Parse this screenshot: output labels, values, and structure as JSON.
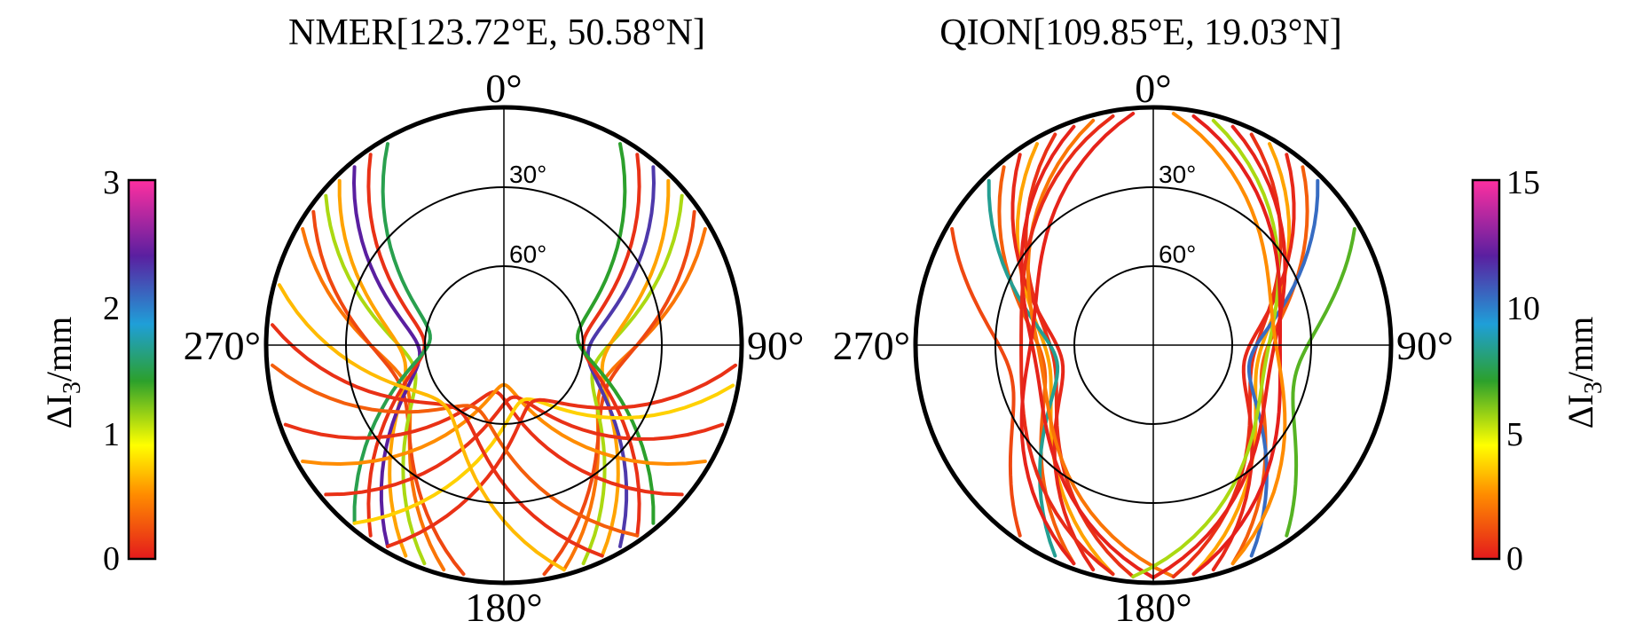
{
  "chart_data": [
    {
      "type": "polar-skyplot",
      "title": "NMER[123.72°E, 50.58°N]",
      "direction_labels": [
        "0°",
        "90°",
        "180°",
        "270°"
      ],
      "ring_labels": [
        "30°",
        "60°"
      ],
      "colorbar": {
        "label": "ΔI3/mm",
        "label_main": "ΔI",
        "label_sub": "3",
        "label_unit": "/mm",
        "range": [
          0,
          3
        ],
        "ticks": [
          "0",
          "1",
          "2",
          "3"
        ],
        "colormap": [
          "#e41a1c",
          "#ff8c00",
          "#ffff00",
          "#2ca02c",
          "#1f9fd8",
          "#5a1fa0",
          "#ff2fa0"
        ]
      },
      "tracks": [
        {
          "az_from": 300,
          "az_to": 195,
          "el_peak": 50,
          "level": 0.4
        },
        {
          "az_from": 305,
          "az_to": 190,
          "el_peak": 48,
          "level": 0.2
        },
        {
          "az_from": 310,
          "az_to": 200,
          "el_peak": 55,
          "level": 1.2
        },
        {
          "az_from": 315,
          "az_to": 205,
          "el_peak": 52,
          "level": 0.6
        },
        {
          "az_from": 320,
          "az_to": 210,
          "el_peak": 58,
          "level": 2.5
        },
        {
          "az_from": 325,
          "az_to": 215,
          "el_peak": 60,
          "level": 0.1
        },
        {
          "az_from": 330,
          "az_to": 220,
          "el_peak": 62,
          "level": 1.6
        },
        {
          "az_from": 60,
          "az_to": 165,
          "el_peak": 50,
          "level": 0.4
        },
        {
          "az_from": 55,
          "az_to": 170,
          "el_peak": 48,
          "level": 0.2
        },
        {
          "az_from": 50,
          "az_to": 160,
          "el_peak": 55,
          "level": 1.2
        },
        {
          "az_from": 45,
          "az_to": 155,
          "el_peak": 52,
          "level": 0.6
        },
        {
          "az_from": 40,
          "az_to": 150,
          "el_peak": 58,
          "level": 2.4
        },
        {
          "az_from": 35,
          "az_to": 145,
          "el_peak": 60,
          "level": 0.1
        },
        {
          "az_from": 30,
          "az_to": 140,
          "el_peak": 62,
          "level": 1.5
        },
        {
          "az_from": 250,
          "az_to": 130,
          "el_peak": 72,
          "level": 0.1
        },
        {
          "az_from": 240,
          "az_to": 120,
          "el_peak": 75,
          "level": 0.5
        },
        {
          "az_from": 230,
          "az_to": 110,
          "el_peak": 70,
          "level": 0.1
        },
        {
          "az_from": 220,
          "az_to": 100,
          "el_peak": 68,
          "level": 0.8
        },
        {
          "az_from": 210,
          "az_to": 95,
          "el_peak": 66,
          "level": 0.1
        },
        {
          "az_from": 265,
          "az_to": 145,
          "el_peak": 64,
          "level": 0.3
        },
        {
          "az_from": 275,
          "az_to": 155,
          "el_peak": 60,
          "level": 0.1
        },
        {
          "az_from": 285,
          "az_to": 165,
          "el_peak": 58,
          "level": 0.7
        }
      ]
    },
    {
      "type": "polar-skyplot",
      "title": "QION[109.85°E, 19.03°N]",
      "direction_labels": [
        "0°",
        "90°",
        "180°",
        "270°"
      ],
      "ring_labels": [
        "30°",
        "60°"
      ],
      "colorbar": {
        "label": "ΔI3/mm",
        "label_main": "ΔI",
        "label_sub": "3",
        "label_unit": "/mm",
        "range": [
          0,
          15
        ],
        "ticks": [
          "0",
          "5",
          "10",
          "15"
        ],
        "colormap": [
          "#e41a1c",
          "#ff8c00",
          "#ffff00",
          "#2ca02c",
          "#1f9fd8",
          "#5a1fa0",
          "#ff2fa0"
        ]
      },
      "tracks": [
        {
          "az_from": 335,
          "az_to": 185,
          "el_peak": 52,
          "level": 0.5
        },
        {
          "az_from": 330,
          "az_to": 190,
          "el_peak": 50,
          "level": 3.0
        },
        {
          "az_from": 325,
          "az_to": 195,
          "el_peak": 55,
          "level": 0.3
        },
        {
          "az_from": 320,
          "az_to": 200,
          "el_peak": 48,
          "level": 1.5
        },
        {
          "az_from": 315,
          "az_to": 205,
          "el_peak": 53,
          "level": 9.0
        },
        {
          "az_from": 340,
          "az_to": 180,
          "el_peak": 45,
          "level": 0.2
        },
        {
          "az_from": 345,
          "az_to": 175,
          "el_peak": 47,
          "level": 2.0
        },
        {
          "az_from": 25,
          "az_to": 175,
          "el_peak": 52,
          "level": 0.5
        },
        {
          "az_from": 30,
          "az_to": 170,
          "el_peak": 50,
          "level": 3.0
        },
        {
          "az_from": 35,
          "az_to": 165,
          "el_peak": 55,
          "level": 0.3
        },
        {
          "az_from": 40,
          "az_to": 160,
          "el_peak": 48,
          "level": 1.5
        },
        {
          "az_from": 45,
          "az_to": 155,
          "el_peak": 53,
          "level": 11.0
        },
        {
          "az_from": 20,
          "az_to": 180,
          "el_peak": 45,
          "level": 0.2
        },
        {
          "az_from": 15,
          "az_to": 185,
          "el_peak": 47,
          "level": 6.0
        },
        {
          "az_from": 350,
          "az_to": 190,
          "el_peak": 40,
          "level": 0.4
        },
        {
          "az_from": 10,
          "az_to": 170,
          "el_peak": 42,
          "level": 0.1
        },
        {
          "az_from": 300,
          "az_to": 215,
          "el_peak": 35,
          "level": 1.0
        },
        {
          "az_from": 60,
          "az_to": 145,
          "el_peak": 35,
          "level": 7.0
        },
        {
          "az_from": 355,
          "az_to": 200,
          "el_peak": 44,
          "level": 0.2
        },
        {
          "az_from": 5,
          "az_to": 160,
          "el_peak": 44,
          "level": 2.5
        }
      ]
    }
  ]
}
